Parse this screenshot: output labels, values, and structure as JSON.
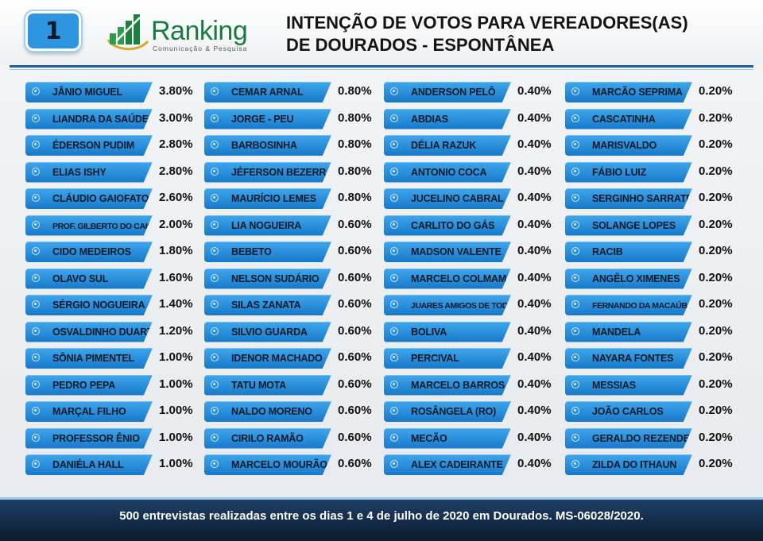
{
  "header": {
    "page_number": "1",
    "logo": {
      "name": "Ranking",
      "tagline": "Comunicação & Pesquisa"
    },
    "title_line1": "INTENÇÃO DE VOTOS PARA VEREADORES(AS)",
    "title_line2": "DE DOURADOS - ESPONTÂNEA"
  },
  "colors": {
    "accent": "#1f79c9",
    "brand_green": "#1a7a40",
    "footer_bg": "#0f2640"
  },
  "columns": [
    [
      {
        "name": "JÂNIO MIGUEL",
        "pct": "3.80%"
      },
      {
        "name": "LIANDRA DA SAÚDE",
        "pct": "3.00%"
      },
      {
        "name": "ÉDERSON PUDIM",
        "pct": "2.80%"
      },
      {
        "name": "ELIAS ISHY",
        "pct": "2.80%"
      },
      {
        "name": "CLÁUDIO GAIOFATO",
        "pct": "2.60%"
      },
      {
        "name": "PROF. GILBERTO DO CAIC",
        "pct": "2.00%"
      },
      {
        "name": "CIDO MEDEIROS",
        "pct": "1.80%"
      },
      {
        "name": "OLAVO SUL",
        "pct": "1.60%"
      },
      {
        "name": "SÉRGIO NOGUEIRA",
        "pct": "1.40%"
      },
      {
        "name": "OSVALDINHO DUARTE",
        "pct": "1.20%"
      },
      {
        "name": "SÔNIA PIMENTEL",
        "pct": "1.00%"
      },
      {
        "name": "PEDRO PEPA",
        "pct": "1.00%"
      },
      {
        "name": "MARÇAL FILHO",
        "pct": "1.00%"
      },
      {
        "name": "PROFESSOR ÊNIO",
        "pct": "1.00%"
      },
      {
        "name": "DANIÉLA HALL",
        "pct": "1.00%"
      }
    ],
    [
      {
        "name": "CEMAR ARNAL",
        "pct": "0.80%"
      },
      {
        "name": "JORGE - PEU",
        "pct": "0.80%"
      },
      {
        "name": "BARBOSINHA",
        "pct": "0.80%"
      },
      {
        "name": "JÉFERSON BEZERRA",
        "pct": "0.80%"
      },
      {
        "name": "MAURÍCIO LEMES",
        "pct": "0.80%"
      },
      {
        "name": "LIA NOGUEIRA",
        "pct": "0.60%"
      },
      {
        "name": "BEBETO",
        "pct": "0.60%"
      },
      {
        "name": "NELSON SUDÁRIO",
        "pct": "0.60%"
      },
      {
        "name": "SILAS ZANATA",
        "pct": "0.60%"
      },
      {
        "name": "SILVIO GUARDA",
        "pct": "0.60%"
      },
      {
        "name": "IDENOR MACHADO",
        "pct": "0.60%"
      },
      {
        "name": "TATU MOTA",
        "pct": "0.60%"
      },
      {
        "name": "NALDO MORENO",
        "pct": "0.60%"
      },
      {
        "name": "CIRILO RAMÃO",
        "pct": "0.60%"
      },
      {
        "name": "MARCELO MOURÃO",
        "pct": "0.60%"
      }
    ],
    [
      {
        "name": "ANDERSON PELÔ",
        "pct": "0.40%"
      },
      {
        "name": "ABDIAS",
        "pct": "0.40%"
      },
      {
        "name": "DÉLIA RAZUK",
        "pct": "0.40%"
      },
      {
        "name": "ANTONIO COCA",
        "pct": "0.40%"
      },
      {
        "name": "JUCELINO CABRAL",
        "pct": "0.40%"
      },
      {
        "name": "CARLITO DO GÁS",
        "pct": "0.40%"
      },
      {
        "name": "MADSON VALENTE",
        "pct": "0.40%"
      },
      {
        "name": "MARCELO COLMAM",
        "pct": "0.40%"
      },
      {
        "name": "JUARES AMIGOS DE TODOS",
        "pct": "0.40%"
      },
      {
        "name": "BOLIVA",
        "pct": "0.40%"
      },
      {
        "name": "PERCIVAL",
        "pct": "0.40%"
      },
      {
        "name": "MARCELO BARROS",
        "pct": "0.40%"
      },
      {
        "name": "ROSÂNGELA (RO)",
        "pct": "0.40%"
      },
      {
        "name": "MECÃO",
        "pct": "0.40%"
      },
      {
        "name": "ALEX CADEIRANTE",
        "pct": "0.40%"
      }
    ],
    [
      {
        "name": "MARCÃO SEPRIMA",
        "pct": "0.20%"
      },
      {
        "name": "CASCATINHA",
        "pct": "0.20%"
      },
      {
        "name": "MARISVALDO",
        "pct": "0.20%"
      },
      {
        "name": "FÁBIO LUIZ",
        "pct": "0.20%"
      },
      {
        "name": "SERGINHO SARRATE",
        "pct": "0.20%"
      },
      {
        "name": "SOLANGE LOPES",
        "pct": "0.20%"
      },
      {
        "name": "RACIB",
        "pct": "0.20%"
      },
      {
        "name": "ANGÊLO XIMENES",
        "pct": "0.20%"
      },
      {
        "name": "FERNANDO DA MACAÚBA",
        "pct": "0.20%"
      },
      {
        "name": "MANDELA",
        "pct": "0.20%"
      },
      {
        "name": "NAYARA FONTES",
        "pct": "0.20%"
      },
      {
        "name": "MESSIAS",
        "pct": "0.20%"
      },
      {
        "name": "JOÃO CARLOS",
        "pct": "0.20%"
      },
      {
        "name": "GERALDO REZENDE",
        "pct": "0.20%"
      },
      {
        "name": "ZILDA DO ITHAUN",
        "pct": "0.20%"
      }
    ]
  ],
  "footer": {
    "note": "500 entrevistas realizadas entre os dias 1 e 4 de julho de 2020 em Dourados. MS-06028/2020."
  }
}
